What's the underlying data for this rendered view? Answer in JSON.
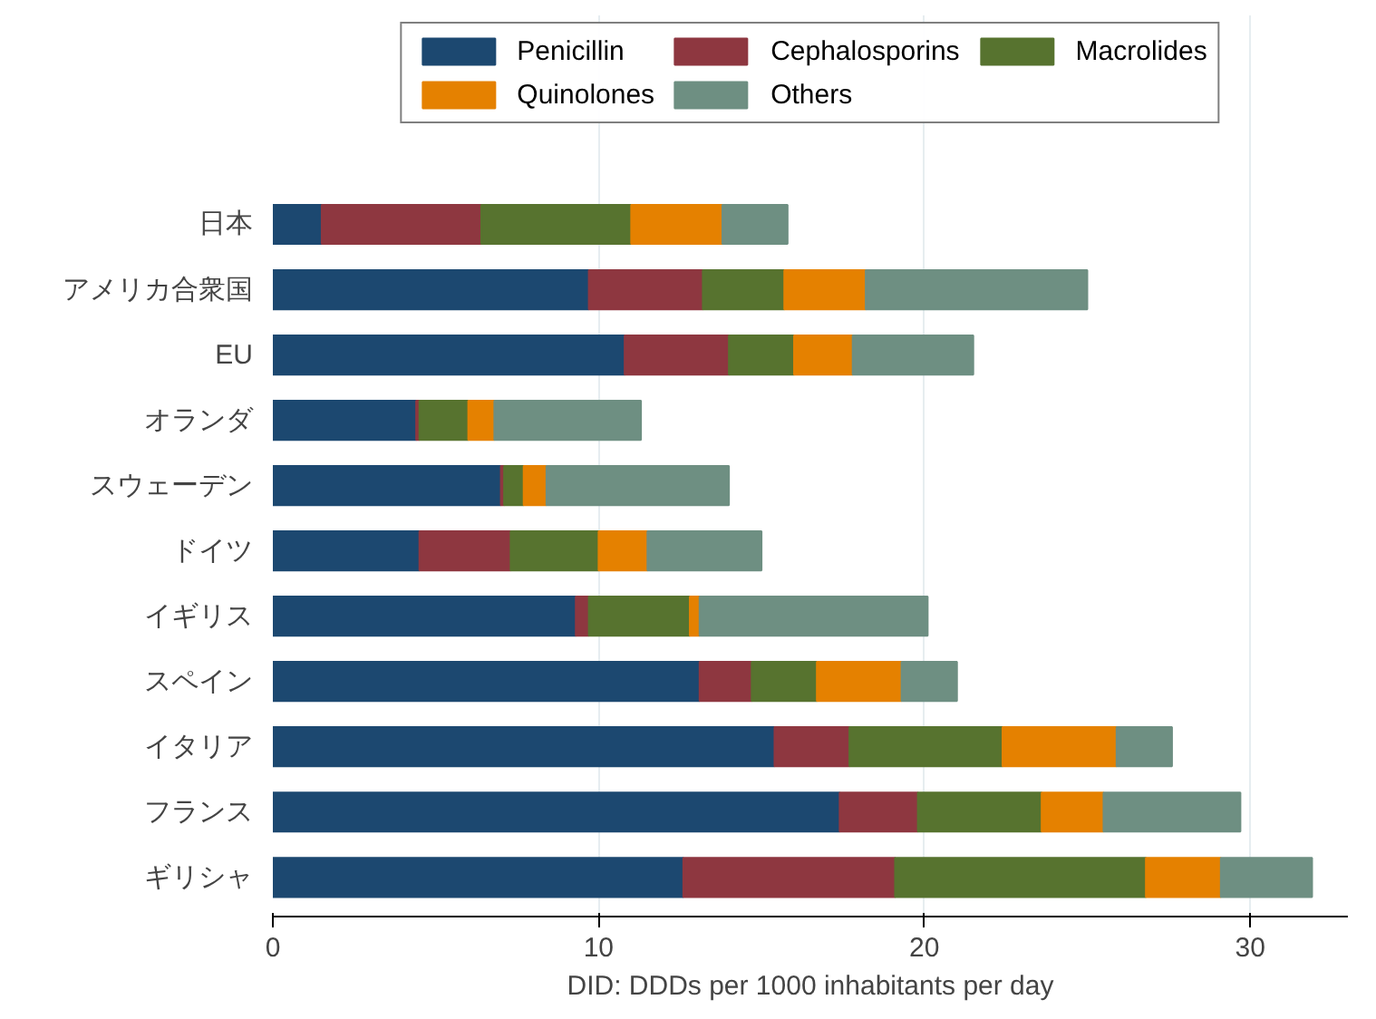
{
  "chart_data": {
    "type": "bar",
    "orientation": "horizontal",
    "stacked": true,
    "categories": [
      "日本",
      "アメリカ合衆国",
      "EU",
      "オランダ",
      "スウェーデン",
      "ドイツ",
      "イギリス",
      "スペイン",
      "イタリア",
      "フランス",
      "ギリシャ"
    ],
    "series": [
      {
        "name": "Penicillin",
        "color": "#1c4870",
        "values": [
          1.5,
          9.7,
          10.8,
          4.4,
          7.0,
          4.5,
          9.3,
          13.1,
          15.4,
          17.4,
          12.6
        ]
      },
      {
        "name": "Cephalosporins",
        "color": "#8e3740",
        "values": [
          4.9,
          3.5,
          3.2,
          0.1,
          0.1,
          2.8,
          0.4,
          1.6,
          2.3,
          2.4,
          6.5
        ]
      },
      {
        "name": "Macrolides",
        "color": "#57732f",
        "values": [
          4.6,
          2.5,
          2.0,
          1.5,
          0.6,
          2.7,
          3.1,
          2.0,
          4.7,
          3.8,
          7.7
        ]
      },
      {
        "name": "Quinolones",
        "color": "#e58100",
        "values": [
          2.8,
          2.5,
          1.8,
          0.8,
          0.7,
          1.5,
          0.3,
          2.6,
          3.5,
          1.9,
          2.3
        ]
      },
      {
        "name": "Others",
        "color": "#6e8f82",
        "values": [
          2.0,
          6.8,
          3.7,
          4.5,
          5.6,
          3.5,
          7.0,
          1.7,
          1.7,
          4.2,
          2.8
        ]
      }
    ],
    "xlim": [
      0,
      33
    ],
    "xticks": [
      0,
      10,
      20,
      30
    ],
    "xlabel": "DID: DDDs per 1000 inhabitants per day",
    "grid": "x",
    "legend": "top"
  }
}
